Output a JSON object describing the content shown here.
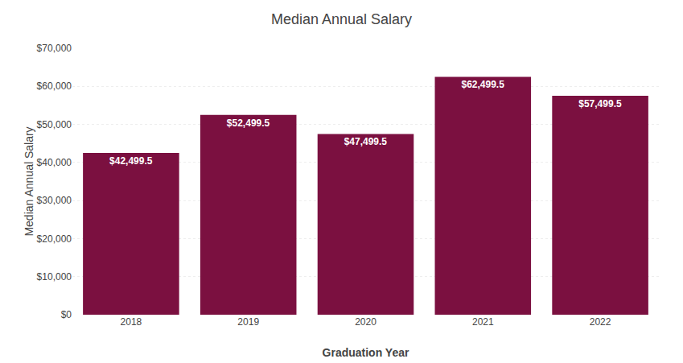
{
  "chart_data": {
    "type": "bar",
    "title": "Median Annual Salary",
    "xlabel": "Graduation Year",
    "ylabel": "Median Annual Salary",
    "categories": [
      "2018",
      "2019",
      "2020",
      "2021",
      "2022"
    ],
    "values": [
      42499.5,
      52499.5,
      47499.5,
      62499.5,
      57499.5
    ],
    "value_labels": [
      "$42,499.5",
      "$52,499.5",
      "$47,499.5",
      "$62,499.5",
      "$57,499.5"
    ],
    "data_labels": true,
    "color": "#7B1040",
    "ylim": [
      0,
      70000
    ],
    "yticks": [
      {
        "value": 0,
        "label": "$0"
      },
      {
        "value": 10000,
        "label": "$10,000"
      },
      {
        "value": 20000,
        "label": "$20,000"
      },
      {
        "value": 30000,
        "label": "$30,000"
      },
      {
        "value": 40000,
        "label": "$40,000"
      },
      {
        "value": 50000,
        "label": "$50,000"
      },
      {
        "value": 60000,
        "label": "$60,000"
      },
      {
        "value": 70000,
        "label": "$70,000"
      }
    ],
    "grid": true
  }
}
